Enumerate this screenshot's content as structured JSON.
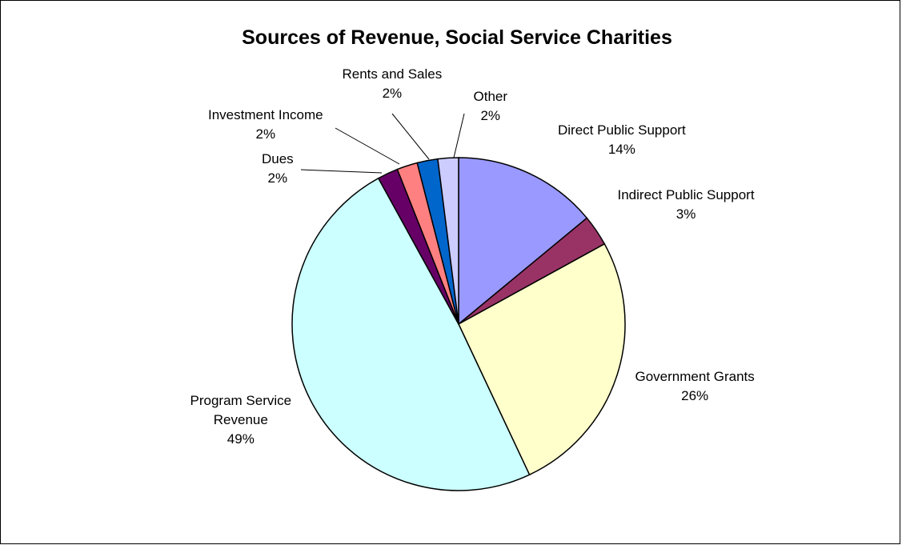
{
  "chart_data": {
    "type": "pie",
    "title": "Sources of Revenue, Social Service Charities",
    "slices": [
      {
        "label": "Direct Public Support",
        "value": 14,
        "display": "14%",
        "color": "#9999FF"
      },
      {
        "label": "Indirect Public Support",
        "value": 3,
        "display": "3%",
        "color": "#993366"
      },
      {
        "label": "Government Grants",
        "value": 26,
        "display": "26%",
        "color": "#FFFFCC"
      },
      {
        "label": "Program Service\nRevenue",
        "value": 49,
        "display": "49%",
        "color": "#CCFFFF"
      },
      {
        "label": "Dues",
        "value": 2,
        "display": "2%",
        "color": "#660066"
      },
      {
        "label": "Investment Income",
        "value": 2,
        "display": "2%",
        "color": "#FF8080"
      },
      {
        "label": "Rents and Sales",
        "value": 2,
        "display": "2%",
        "color": "#0066CC"
      },
      {
        "label": "Other",
        "value": 2,
        "display": "2%",
        "color": "#CCCCFF"
      }
    ]
  }
}
